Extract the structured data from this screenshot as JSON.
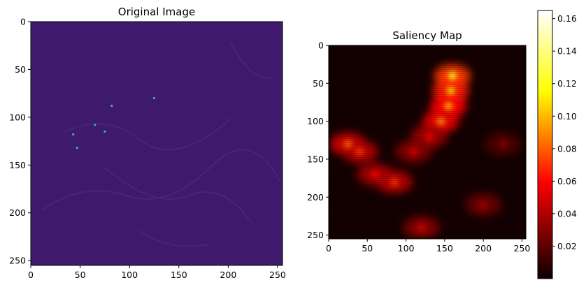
{
  "figure": {
    "background": "#ffffff",
    "text_color": "#000000"
  },
  "chart_data": [
    {
      "type": "heatmap",
      "title": "Original Image",
      "colormap": "viridis",
      "xlabel": "",
      "ylabel": "",
      "xlim": [
        0,
        255
      ],
      "ylim": [
        255,
        0
      ],
      "xticks": [
        0,
        50,
        100,
        150,
        200,
        250
      ],
      "yticks": [
        0,
        50,
        100,
        150,
        200,
        250
      ],
      "xtick_labels": [
        "0",
        "50",
        "100",
        "150",
        "200",
        "250"
      ],
      "ytick_labels": [
        "0",
        "50",
        "100",
        "150",
        "200",
        "250"
      ],
      "colors": {
        "background": "#3f1a6c",
        "texture": "#4a2f7c",
        "bright": "#35b7a0"
      },
      "bright_spots": [
        {
          "x": 82,
          "y": 88
        },
        {
          "x": 65,
          "y": 108
        },
        {
          "x": 75,
          "y": 115
        },
        {
          "x": 43,
          "y": 118
        },
        {
          "x": 47,
          "y": 132
        },
        {
          "x": 125,
          "y": 80
        }
      ]
    },
    {
      "type": "heatmap",
      "title": "Saliency Map",
      "colormap": "hot",
      "xlabel": "",
      "ylabel": "",
      "xlim": [
        0,
        255
      ],
      "ylim": [
        255,
        0
      ],
      "xticks": [
        0,
        50,
        100,
        150,
        200,
        250
      ],
      "yticks": [
        0,
        50,
        100,
        150,
        200,
        250
      ],
      "xtick_labels": [
        "0",
        "50",
        "100",
        "150",
        "200",
        "250"
      ],
      "ytick_labels": [
        "0",
        "50",
        "100",
        "150",
        "200",
        "250"
      ],
      "colorbar": {
        "range": [
          0,
          0.165
        ],
        "ticks": [
          0.02,
          0.04,
          0.06,
          0.08,
          0.1,
          0.12,
          0.14,
          0.16
        ],
        "tick_labels": [
          "0.02",
          "0.04",
          "0.06",
          "0.08",
          "0.10",
          "0.12",
          "0.14",
          "0.16"
        ]
      },
      "hotspots": [
        {
          "x": 160,
          "y": 40,
          "value": 0.12
        },
        {
          "x": 158,
          "y": 60,
          "value": 0.11
        },
        {
          "x": 155,
          "y": 80,
          "value": 0.1
        },
        {
          "x": 145,
          "y": 100,
          "value": 0.09
        },
        {
          "x": 130,
          "y": 120,
          "value": 0.06
        },
        {
          "x": 110,
          "y": 140,
          "value": 0.05
        },
        {
          "x": 25,
          "y": 130,
          "value": 0.08
        },
        {
          "x": 40,
          "y": 140,
          "value": 0.07
        },
        {
          "x": 60,
          "y": 170,
          "value": 0.06
        },
        {
          "x": 85,
          "y": 180,
          "value": 0.07
        },
        {
          "x": 120,
          "y": 240,
          "value": 0.05
        },
        {
          "x": 200,
          "y": 210,
          "value": 0.04
        },
        {
          "x": 225,
          "y": 130,
          "value": 0.03
        }
      ]
    }
  ]
}
